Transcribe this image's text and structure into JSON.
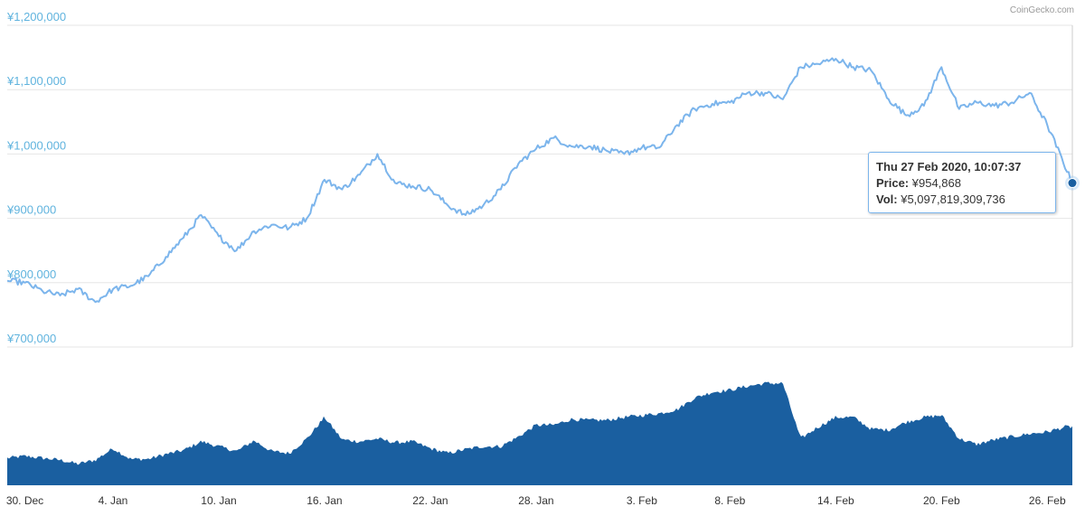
{
  "credit": "CoinGecko.com",
  "tooltip": {
    "date": "Thu 27 Feb 2020, 10:07:37",
    "price_label": "Price:",
    "price_value": "¥954,868",
    "vol_label": "Vol:",
    "vol_value": "¥5,097,819,309,736"
  },
  "colors": {
    "price_line": "#7cb5ec",
    "volume_fill": "#1a5fa0",
    "axis_label": "#5fb3de",
    "marker": "#1a5fa0"
  },
  "chart_data": [
    {
      "type": "line",
      "title": "",
      "xlabel": "",
      "ylabel": "",
      "x_unit": "date",
      "x_range": [
        "2019-12-29",
        "2020-02-27"
      ],
      "ylim": [
        700000,
        1200000
      ],
      "yticks": [
        700000,
        800000,
        900000,
        1000000,
        1100000,
        1200000
      ],
      "ytick_labels": [
        "¥700,000",
        "¥800,000",
        "¥900,000",
        "¥1,000,000",
        "¥1,100,000",
        "¥1,200,000"
      ],
      "xtick_dates": [
        "2019-12-30",
        "2020-01-04",
        "2020-01-10",
        "2020-01-16",
        "2020-01-22",
        "2020-01-28",
        "2020-02-03",
        "2020-02-08",
        "2020-02-14",
        "2020-02-20",
        "2020-02-26"
      ],
      "xtick_labels": [
        "30. Dec",
        "4. Jan",
        "10. Jan",
        "16. Jan",
        "22. Jan",
        "28. Jan",
        "3. Feb",
        "8. Feb",
        "14. Feb",
        "20. Feb",
        "26. Feb"
      ],
      "grid": true,
      "series": [
        {
          "x": [
            "2019-12-29",
            "2019-12-30",
            "2019-12-31",
            "2020-01-01",
            "2020-01-02",
            "2020-01-03",
            "2020-01-04",
            "2020-01-05",
            "2020-01-06",
            "2020-01-07",
            "2020-01-08",
            "2020-01-09",
            "2020-01-10",
            "2020-01-11",
            "2020-01-12",
            "2020-01-13",
            "2020-01-14",
            "2020-01-15",
            "2020-01-16",
            "2020-01-17",
            "2020-01-18",
            "2020-01-19",
            "2020-01-20",
            "2020-01-21",
            "2020-01-22",
            "2020-01-23",
            "2020-01-24",
            "2020-01-25",
            "2020-01-26",
            "2020-01-27",
            "2020-01-28",
            "2020-01-29",
            "2020-01-30",
            "2020-01-31",
            "2020-02-01",
            "2020-02-02",
            "2020-02-03",
            "2020-02-04",
            "2020-02-05",
            "2020-02-06",
            "2020-02-07",
            "2020-02-08",
            "2020-02-09",
            "2020-02-10",
            "2020-02-11",
            "2020-02-12",
            "2020-02-13",
            "2020-02-14",
            "2020-02-15",
            "2020-02-16",
            "2020-02-17",
            "2020-02-18",
            "2020-02-19",
            "2020-02-20",
            "2020-02-21",
            "2020-02-22",
            "2020-02-23",
            "2020-02-24",
            "2020-02-25",
            "2020-02-26",
            "2020-02-27"
          ],
          "values": [
            803000,
            800000,
            787000,
            780000,
            790000,
            770000,
            790000,
            795000,
            810000,
            840000,
            870000,
            905000,
            872000,
            850000,
            880000,
            890000,
            885000,
            900000,
            960000,
            945000,
            968000,
            1000000,
            955000,
            950000,
            945000,
            920000,
            905000,
            920000,
            945000,
            985000,
            1008000,
            1025000,
            1012000,
            1012000,
            1005000,
            1000000,
            1010000,
            1010000,
            1045000,
            1070000,
            1078000,
            1080000,
            1095000,
            1095000,
            1085000,
            1135000,
            1140000,
            1148000,
            1135000,
            1130000,
            1085000,
            1060000,
            1075000,
            1135000,
            1070000,
            1080000,
            1075000,
            1080000,
            1095000,
            1045000,
            954868
          ]
        },
        {
          "name": "",
          "type": "area",
          "x": [
            "2019-12-29",
            "2019-12-30",
            "2019-12-31",
            "2020-01-01",
            "2020-01-02",
            "2020-01-03",
            "2020-01-04",
            "2020-01-05",
            "2020-01-06",
            "2020-01-07",
            "2020-01-08",
            "2020-01-09",
            "2020-01-10",
            "2020-01-11",
            "2020-01-12",
            "2020-01-13",
            "2020-01-14",
            "2020-01-15",
            "2020-01-16",
            "2020-01-17",
            "2020-01-18",
            "2020-01-19",
            "2020-01-20",
            "2020-01-21",
            "2020-01-22",
            "2020-01-23",
            "2020-01-24",
            "2020-01-25",
            "2020-01-26",
            "2020-01-27",
            "2020-01-28",
            "2020-01-29",
            "2020-01-30",
            "2020-01-31",
            "2020-02-01",
            "2020-02-02",
            "2020-02-03",
            "2020-02-04",
            "2020-02-05",
            "2020-02-06",
            "2020-02-07",
            "2020-02-08",
            "2020-02-09",
            "2020-02-10",
            "2020-02-11",
            "2020-02-12",
            "2020-02-13",
            "2020-02-14",
            "2020-02-15",
            "2020-02-16",
            "2020-02-17",
            "2020-02-18",
            "2020-02-19",
            "2020-02-20",
            "2020-02-21",
            "2020-02-22",
            "2020-02-23",
            "2020-02-24",
            "2020-02-25",
            "2020-02-26",
            "2020-02-27"
          ],
          "values": [
            28,
            30,
            28,
            26,
            22,
            26,
            38,
            27,
            27,
            32,
            36,
            45,
            40,
            35,
            46,
            35,
            33,
            48,
            70,
            47,
            45,
            48,
            44,
            45,
            38,
            33,
            37,
            40,
            40,
            50,
            62,
            62,
            68,
            67,
            67,
            70,
            72,
            74,
            78,
            90,
            96,
            98,
            102,
            105,
            105,
            48,
            60,
            70,
            70,
            58,
            57,
            65,
            70,
            72,
            48,
            42,
            47,
            50,
            53,
            55,
            60
          ]
        }
      ]
    }
  ]
}
